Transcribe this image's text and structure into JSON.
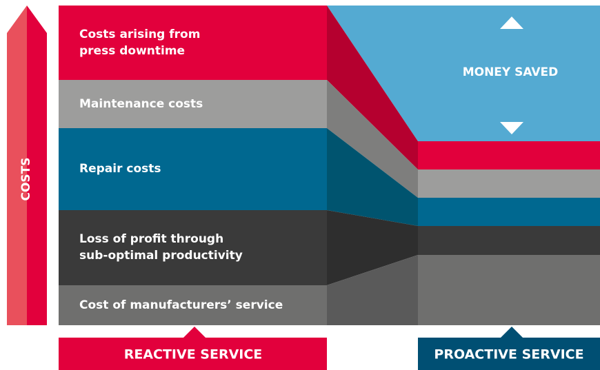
{
  "axis_label": "COSTS",
  "layers": [
    {
      "lines": [
        "Costs arising from",
        "press downtime"
      ]
    },
    {
      "lines": [
        "Maintenance costs"
      ]
    },
    {
      "lines": [
        "Repair costs"
      ]
    },
    {
      "lines": [
        "Loss of profit through",
        "sub-optimal productivity"
      ]
    },
    {
      "lines": [
        "Cost of manufacturers’ service"
      ]
    }
  ],
  "money_saved": "MONEY SAVED",
  "reactive": "REACTIVE SERVICE",
  "proactive": "PROACTIVE SERVICE"
}
